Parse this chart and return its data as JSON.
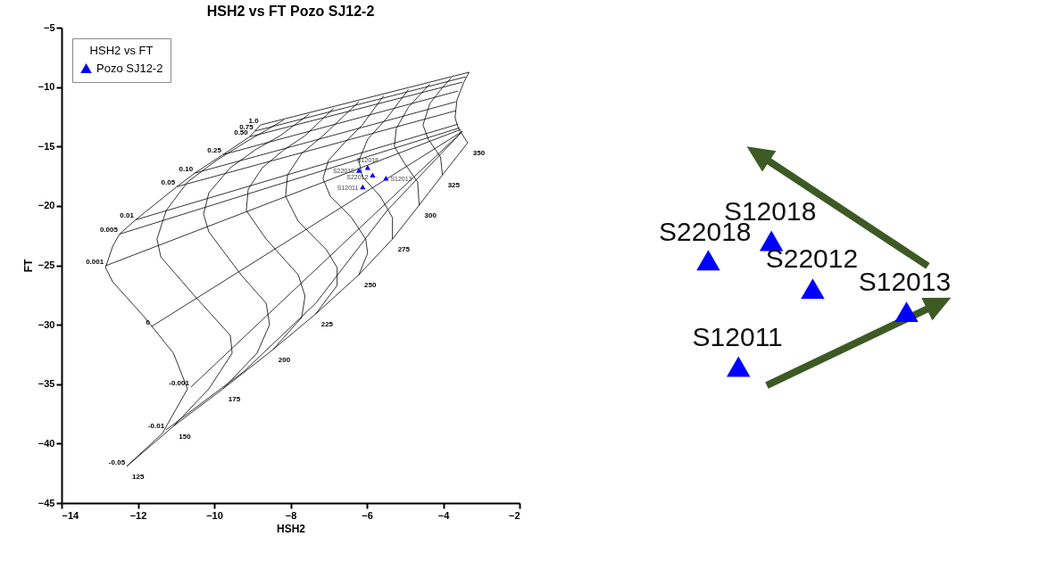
{
  "chart_data": [
    {
      "type": "line",
      "title": "HSH2 vs FT Pozo SJ12-2",
      "xlabel": "HSH2",
      "ylabel": "FT",
      "legend_title": "HSH2 vs FT",
      "legend": "top left",
      "grid": false,
      "xlim": [
        -14,
        -2
      ],
      "xticks": [
        -14,
        -12,
        -10,
        -8,
        -6,
        -4,
        -2
      ],
      "ylim": [
        -45,
        -5
      ],
      "yticks": [
        -45,
        -40,
        -35,
        -30,
        -25,
        -20,
        -15,
        -10,
        -5
      ],
      "series": [
        {
          "type": "scatter",
          "name": "Pozo SJ12-2",
          "color": "#0000ff",
          "marker": "triangle",
          "x": [
            -6.21,
            -5.98,
            -5.85,
            -5.5,
            -6.11
          ],
          "values": [
            -17.0,
            -16.77,
            -17.4,
            -17.67,
            -18.4
          ],
          "value_labels": [
            "S22018",
            "S12018",
            "S22012",
            "S12013",
            "S12011"
          ]
        },
        {
          "type": "line",
          "name": "125",
          "color": "#000000",
          "x": [
            -12.29,
            -11.36,
            -10.7,
            -11.07,
            -11.82,
            -12.66,
            -12.85,
            -12.66,
            -12.48,
            -12.06,
            -10.98,
            -10.51,
            -9.77,
            -9.07,
            -8.79
          ],
          "values": [
            -41.9,
            -39.14,
            -35.39,
            -32.39,
            -29.39,
            -26.39,
            -25.19,
            -23.39,
            -22.37,
            -21.17,
            -18.38,
            -17.24,
            -15.68,
            -14.18,
            -13.19
          ]
        },
        {
          "type": "line",
          "name": "150",
          "color": "#000000",
          "x": [
            -11.07,
            -10.14,
            -9.53,
            -9.58,
            -10.51,
            -11.4,
            -11.5,
            -11.26,
            -10.7,
            -9.95,
            -9.21,
            -8.18
          ],
          "values": [
            -38.54,
            -35.39,
            -32.39,
            -30.89,
            -27.59,
            -24.29,
            -22.79,
            -20.39,
            -17.99,
            -16.19,
            -14.69,
            -12.77
          ]
        },
        {
          "type": "line",
          "name": "175",
          "color": "#000000",
          "x": [
            -9.77,
            -8.88,
            -8.55,
            -8.64,
            -9.3,
            -10.14,
            -10.28,
            -10.14,
            -9.58,
            -8.93,
            -8.27,
            -7.52
          ],
          "values": [
            -35.39,
            -32.39,
            -29.99,
            -28.19,
            -25.79,
            -22.19,
            -20.69,
            -18.89,
            -16.79,
            -15.29,
            -14.09,
            -12.29
          ]
        },
        {
          "type": "line",
          "name": "200",
          "color": "#000000",
          "x": [
            -8.46,
            -7.71,
            -7.62,
            -7.8,
            -8.64,
            -9.16,
            -9.11,
            -8.74,
            -8.18,
            -7.62,
            -6.87
          ],
          "values": [
            -32.09,
            -29.39,
            -27.59,
            -25.79,
            -22.79,
            -20.39,
            -18.59,
            -16.79,
            -15.29,
            -14.09,
            -11.78
          ]
        },
        {
          "type": "line",
          "name": "225",
          "color": "#000000",
          "x": [
            -7.34,
            -6.78,
            -6.78,
            -7.06,
            -7.8,
            -8.13,
            -8.08,
            -7.71,
            -7.15,
            -6.21
          ],
          "values": [
            -29.09,
            -26.69,
            -25.19,
            -23.69,
            -21.29,
            -19.19,
            -17.39,
            -15.59,
            -14.09,
            -11.24
          ]
        },
        {
          "type": "line",
          "name": "250",
          "color": "#000000",
          "x": [
            -6.21,
            -5.98,
            -6.03,
            -6.4,
            -6.96,
            -7.15,
            -7.01,
            -6.59,
            -6.12,
            -5.56
          ],
          "values": [
            -25.79,
            -23.99,
            -22.79,
            -20.99,
            -19.19,
            -17.69,
            -16.19,
            -14.69,
            -13.19,
            -10.73
          ]
        },
        {
          "type": "line",
          "name": "275",
          "color": "#000000",
          "x": [
            -5.33,
            -5.33,
            -5.65,
            -6.12,
            -6.21,
            -5.98,
            -5.47,
            -4.91
          ],
          "values": [
            -22.79,
            -20.99,
            -19.19,
            -17.54,
            -16.19,
            -14.39,
            -12.59,
            -10.19
          ]
        },
        {
          "type": "line",
          "name": "300",
          "color": "#000000",
          "x": [
            -4.63,
            -4.67,
            -5.0,
            -5.28,
            -5.23,
            -4.91,
            -4.35
          ],
          "values": [
            -19.94,
            -17.99,
            -16.49,
            -14.99,
            -13.49,
            -11.69,
            -9.74
          ]
        },
        {
          "type": "line",
          "name": "325",
          "color": "#000000",
          "x": [
            -4.02,
            -4.07,
            -4.39,
            -4.53,
            -4.35,
            -4.02,
            -3.79
          ],
          "values": [
            -17.39,
            -15.89,
            -14.39,
            -13.19,
            -11.39,
            -10.04,
            -9.23
          ]
        },
        {
          "type": "line",
          "name": "350",
          "color": "#000000",
          "x": [
            -3.36,
            -3.6,
            -3.69,
            -3.64,
            -3.46,
            -3.32
          ],
          "values": [
            -14.69,
            -13.49,
            -12.59,
            -11.09,
            -9.59,
            -8.75
          ]
        },
        {
          "type": "line",
          "name": "-0.05",
          "color": "#000000",
          "x": [
            -12.29,
            -11.07,
            -9.77,
            -8.46,
            -7.34,
            -6.21,
            -5.33,
            -4.63,
            -4.02,
            -3.36
          ],
          "values": [
            -41.9,
            -38.54,
            -35.39,
            -32.09,
            -29.09,
            -25.79,
            -22.79,
            -19.94,
            -17.39,
            -14.69
          ]
        },
        {
          "type": "line",
          "name": "-0.01",
          "color": "#000000",
          "x": [
            -11.26,
            -9.21,
            -7.34,
            -5.47,
            -3.5
          ],
          "values": [
            -38.84,
            -33.89,
            -28.19,
            -20.39,
            -13.73
          ]
        },
        {
          "type": "line",
          "name": "-0.001",
          "color": "#000000",
          "x": [
            -10.61,
            -3.5
          ],
          "values": [
            -35.24,
            -13.73
          ]
        },
        {
          "type": "line",
          "name": "0",
          "color": "#000000",
          "x": [
            -11.64,
            -3.5
          ],
          "values": [
            -30.14,
            -13.73
          ]
        },
        {
          "type": "line",
          "name": "0.001",
          "color": "#000000",
          "x": [
            -12.85,
            -3.53
          ],
          "values": [
            -25.04,
            -13.55
          ]
        },
        {
          "type": "line",
          "name": "0.005",
          "color": "#000000",
          "x": [
            -12.48,
            -3.57
          ],
          "values": [
            -22.37,
            -13.43
          ]
        },
        {
          "type": "line",
          "name": "0.01",
          "color": "#000000",
          "x": [
            -12.06,
            -3.62
          ],
          "values": [
            -21.17,
            -13.13
          ]
        },
        {
          "type": "line",
          "name": "0.05",
          "color": "#000000",
          "x": [
            -10.98,
            -3.67
          ],
          "values": [
            -18.38,
            -11.99
          ]
        },
        {
          "type": "line",
          "name": "0.10",
          "color": "#000000",
          "x": [
            -10.51,
            -3.67
          ],
          "values": [
            -17.24,
            -11.24
          ]
        },
        {
          "type": "line",
          "name": "0.25",
          "color": "#000000",
          "x": [
            -9.77,
            -3.62
          ],
          "values": [
            -15.68,
            -10.34
          ]
        },
        {
          "type": "line",
          "name": "0.50",
          "color": "#000000",
          "x": [
            -9.07,
            -3.5
          ],
          "values": [
            -14.18,
            -9.59
          ]
        },
        {
          "type": "line",
          "name": "0.75",
          "color": "#000000",
          "x": [
            -8.93,
            -3.41
          ],
          "values": [
            -13.7,
            -9.14
          ]
        },
        {
          "type": "line",
          "name": "1.0",
          "color": "#000000",
          "x": [
            -8.79,
            -3.32
          ],
          "values": [
            -13.19,
            -8.75
          ]
        }
      ]
    },
    {
      "type": "other",
      "annotations": [
        "S22018",
        "S12018",
        "S22012",
        "S12013",
        "S12011"
      ]
    }
  ]
}
